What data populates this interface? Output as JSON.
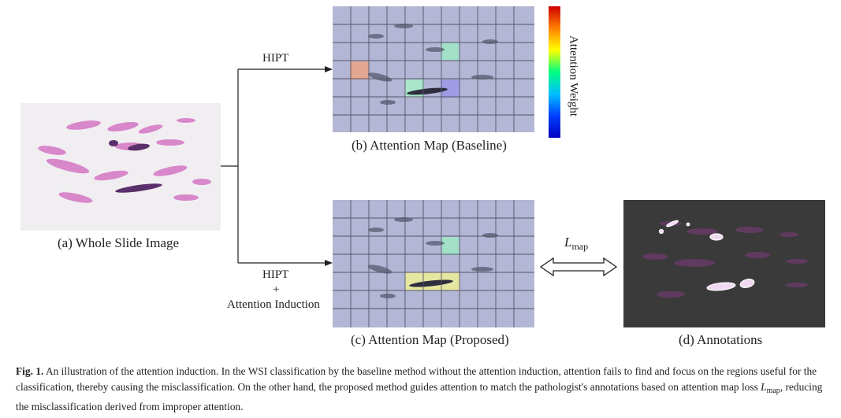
{
  "figure": {
    "panel_a_label": "(a) Whole Slide Image",
    "panel_b_label": "(b) Attention Map (Baseline)",
    "panel_c_label": "(c) Attention Map (Proposed)",
    "panel_d_label": "(d) Annotations",
    "arrow_top_label": "HIPT",
    "arrow_bottom_label_line1": "HIPT",
    "arrow_bottom_label_line2": "+",
    "arrow_bottom_label_line3": "Attention Induction",
    "colorbar_label": "Attention Weight",
    "loss_label_main": "L",
    "loss_label_sub": "map",
    "colors": {
      "grid_background": "#b3b6d4",
      "grid_line": "#55566a",
      "annotation_background": "#3a3a3a",
      "tissue": "#c05fb0",
      "tissue_dark": "#4a2a5e"
    }
  },
  "caption": {
    "label": "Fig. 1.",
    "text_part1": " An illustration of the attention induction. In the WSI classification by the baseline method without the attention induction, attention fails to find and focus on the regions useful for the classification, thereby causing the misclassification. On the other hand, the proposed method guides attention to match the pathologist's annotations based on attention map loss ",
    "loss_main": "L",
    "loss_sub": "map",
    "text_part2": ", reducing the misclassification derived from improper attention."
  }
}
